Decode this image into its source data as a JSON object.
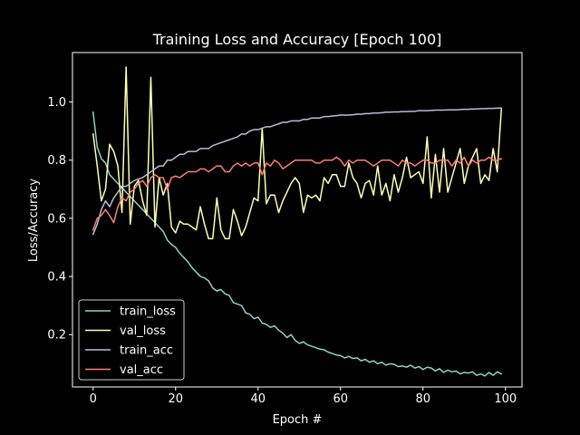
{
  "chart_data": {
    "type": "line",
    "title": "Training Loss and Accuracy [Epoch 100]",
    "xlabel": "Epoch #",
    "ylabel": "Loss/Accuracy",
    "xlim": [
      -5,
      104
    ],
    "ylim": [
      0.02,
      1.17
    ],
    "xticks": [
      0,
      20,
      40,
      60,
      80,
      100
    ],
    "yticks": [
      0.2,
      0.4,
      0.6,
      0.8,
      1.0
    ],
    "xtick_labels": [
      "0",
      "20",
      "40",
      "60",
      "80",
      "100"
    ],
    "ytick_labels": [
      "0.2",
      "0.4",
      "0.6",
      "0.8",
      "1.0"
    ],
    "grid": false,
    "legend_position": "lower-left",
    "background": "#000000",
    "x": [
      0,
      1,
      2,
      3,
      4,
      5,
      6,
      7,
      8,
      9,
      10,
      11,
      12,
      13,
      14,
      15,
      16,
      17,
      18,
      19,
      20,
      21,
      22,
      23,
      24,
      25,
      26,
      27,
      28,
      29,
      30,
      31,
      32,
      33,
      34,
      35,
      36,
      37,
      38,
      39,
      40,
      41,
      42,
      43,
      44,
      45,
      46,
      47,
      48,
      49,
      50,
      51,
      52,
      53,
      54,
      55,
      56,
      57,
      58,
      59,
      60,
      61,
      62,
      63,
      64,
      65,
      66,
      67,
      68,
      69,
      70,
      71,
      72,
      73,
      74,
      75,
      76,
      77,
      78,
      79,
      80,
      81,
      82,
      83,
      84,
      85,
      86,
      87,
      88,
      89,
      90,
      91,
      92,
      93,
      94,
      95,
      96,
      97,
      98,
      99
    ],
    "series": [
      {
        "name": "train_loss",
        "color": "#8dd3c7",
        "values": [
          0.965,
          0.845,
          0.805,
          0.79,
          0.75,
          0.735,
          0.72,
          0.705,
          0.69,
          0.675,
          0.66,
          0.645,
          0.63,
          0.615,
          0.6,
          0.585,
          0.57,
          0.555,
          0.525,
          0.51,
          0.5,
          0.48,
          0.465,
          0.45,
          0.43,
          0.415,
          0.4,
          0.395,
          0.385,
          0.36,
          0.35,
          0.355,
          0.34,
          0.335,
          0.31,
          0.305,
          0.3,
          0.275,
          0.27,
          0.255,
          0.26,
          0.24,
          0.235,
          0.225,
          0.23,
          0.215,
          0.205,
          0.19,
          0.2,
          0.18,
          0.17,
          0.175,
          0.165,
          0.16,
          0.155,
          0.15,
          0.148,
          0.14,
          0.135,
          0.13,
          0.128,
          0.12,
          0.125,
          0.118,
          0.12,
          0.11,
          0.115,
          0.105,
          0.11,
          0.1,
          0.105,
          0.095,
          0.1,
          0.098,
          0.09,
          0.092,
          0.088,
          0.095,
          0.085,
          0.09,
          0.08,
          0.088,
          0.085,
          0.075,
          0.083,
          0.07,
          0.078,
          0.072,
          0.075,
          0.065,
          0.07,
          0.068,
          0.072,
          0.06,
          0.065,
          0.058,
          0.07,
          0.06,
          0.072,
          0.065
        ]
      },
      {
        "name": "val_loss",
        "color": "#ffffb3",
        "values": [
          0.89,
          0.78,
          0.66,
          0.7,
          0.855,
          0.83,
          0.78,
          0.62,
          1.12,
          0.58,
          0.71,
          0.73,
          0.66,
          0.61,
          1.085,
          0.57,
          0.74,
          0.68,
          0.72,
          0.57,
          0.55,
          0.59,
          0.58,
          0.58,
          0.57,
          0.56,
          0.64,
          0.58,
          0.53,
          0.53,
          0.67,
          0.56,
          0.53,
          0.53,
          0.63,
          0.59,
          0.54,
          0.57,
          0.62,
          0.67,
          0.66,
          0.91,
          0.65,
          0.68,
          0.68,
          0.62,
          0.66,
          0.69,
          0.72,
          0.74,
          0.72,
          0.62,
          0.68,
          0.67,
          0.68,
          0.66,
          0.74,
          0.72,
          0.75,
          0.75,
          0.71,
          0.71,
          0.79,
          0.74,
          0.72,
          0.67,
          0.72,
          0.73,
          0.68,
          0.78,
          0.68,
          0.72,
          0.66,
          0.75,
          0.69,
          0.74,
          0.81,
          0.74,
          0.75,
          0.76,
          0.72,
          0.88,
          0.67,
          0.82,
          0.69,
          0.84,
          0.69,
          0.74,
          0.79,
          0.84,
          0.72,
          0.78,
          0.81,
          0.84,
          0.72,
          0.75,
          0.73,
          0.84,
          0.76,
          0.975
        ]
      },
      {
        "name": "train_acc",
        "color": "#bebada",
        "values": [
          0.545,
          0.58,
          0.63,
          0.66,
          0.64,
          0.67,
          0.69,
          0.71,
          0.71,
          0.72,
          0.73,
          0.735,
          0.74,
          0.75,
          0.76,
          0.77,
          0.78,
          0.78,
          0.8,
          0.8,
          0.81,
          0.82,
          0.82,
          0.83,
          0.83,
          0.83,
          0.84,
          0.84,
          0.84,
          0.85,
          0.855,
          0.86,
          0.865,
          0.87,
          0.875,
          0.88,
          0.89,
          0.89,
          0.9,
          0.905,
          0.905,
          0.91,
          0.915,
          0.915,
          0.92,
          0.925,
          0.93,
          0.93,
          0.935,
          0.935,
          0.935,
          0.94,
          0.94,
          0.945,
          0.945,
          0.945,
          0.95,
          0.95,
          0.952,
          0.953,
          0.955,
          0.955,
          0.955,
          0.956,
          0.958,
          0.958,
          0.96,
          0.96,
          0.962,
          0.962,
          0.963,
          0.965,
          0.965,
          0.966,
          0.966,
          0.967,
          0.967,
          0.968,
          0.968,
          0.97,
          0.97,
          0.97,
          0.971,
          0.972,
          0.972,
          0.972,
          0.973,
          0.973,
          0.973,
          0.974,
          0.975,
          0.975,
          0.976,
          0.976,
          0.977,
          0.977,
          0.978,
          0.978,
          0.979,
          0.979
        ]
      },
      {
        "name": "val_acc",
        "color": "#fb8072",
        "values": [
          0.56,
          0.6,
          0.61,
          0.63,
          0.61,
          0.585,
          0.64,
          0.67,
          0.66,
          0.69,
          0.7,
          0.72,
          0.73,
          0.71,
          0.74,
          0.75,
          0.74,
          0.74,
          0.7,
          0.74,
          0.745,
          0.74,
          0.75,
          0.76,
          0.76,
          0.76,
          0.77,
          0.77,
          0.76,
          0.77,
          0.78,
          0.78,
          0.76,
          0.76,
          0.78,
          0.79,
          0.78,
          0.79,
          0.78,
          0.79,
          0.79,
          0.75,
          0.79,
          0.78,
          0.8,
          0.79,
          0.77,
          0.78,
          0.79,
          0.8,
          0.8,
          0.8,
          0.8,
          0.8,
          0.79,
          0.79,
          0.8,
          0.8,
          0.8,
          0.81,
          0.8,
          0.78,
          0.8,
          0.79,
          0.8,
          0.8,
          0.8,
          0.79,
          0.78,
          0.79,
          0.8,
          0.8,
          0.8,
          0.79,
          0.78,
          0.8,
          0.79,
          0.79,
          0.78,
          0.79,
          0.8,
          0.8,
          0.79,
          0.79,
          0.8,
          0.8,
          0.8,
          0.78,
          0.8,
          0.79,
          0.81,
          0.78,
          0.8,
          0.79,
          0.8,
          0.8,
          0.81,
          0.8,
          0.8,
          0.805
        ]
      }
    ]
  }
}
